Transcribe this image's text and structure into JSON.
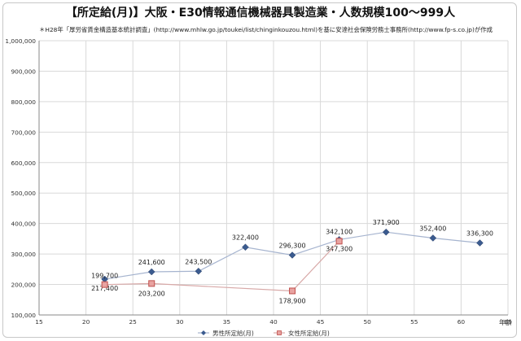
{
  "title": "【所定給(月)】大阪・E30情報通信機械器具製造業・人数規模100〜999人",
  "note": "＊H28年「厚労省賃金構造基本統計調査」(http://www.mhlw.go.jp/toukei/list/chinginkouzou.html)を基に安達社会保険労務士事務所(http://www.fp-s.co.jp)が作成",
  "chart_data": {
    "type": "line",
    "xlabel": "年齢",
    "ylabel": "",
    "xlim": [
      15,
      65
    ],
    "ylim": [
      100000,
      1000000
    ],
    "x_ticks": [
      "15",
      "20",
      "25",
      "30",
      "35",
      "40",
      "45",
      "50",
      "55",
      "60",
      "65"
    ],
    "y_ticks": [
      "100,000",
      "200,000",
      "300,000",
      "400,000",
      "500,000",
      "600,000",
      "700,000",
      "800,000",
      "900,000",
      "1,000,000"
    ],
    "grid": true,
    "legend_position": "bottom",
    "series": [
      {
        "name": "男性所定給(月)",
        "color": "#3b5b8f",
        "marker": "diamond",
        "x": [
          22,
          27,
          32,
          37,
          42,
          47,
          52,
          57,
          62
        ],
        "y": [
          217400,
          241600,
          243500,
          322400,
          296300,
          347300,
          371900,
          352400,
          336300
        ],
        "labels": [
          "217,400",
          "241,600",
          "243,500",
          "322,400",
          "296,300",
          "347,300",
          "371,900",
          "352,400",
          "336,300"
        ]
      },
      {
        "name": "女性所定給(月)",
        "color": "#c0504d",
        "marker": "square",
        "x": [
          22,
          27,
          42,
          47
        ],
        "y": [
          199700,
          203200,
          178900,
          342100
        ],
        "labels": [
          "199,700",
          "203,200",
          "178,900",
          "342,100"
        ]
      }
    ]
  }
}
